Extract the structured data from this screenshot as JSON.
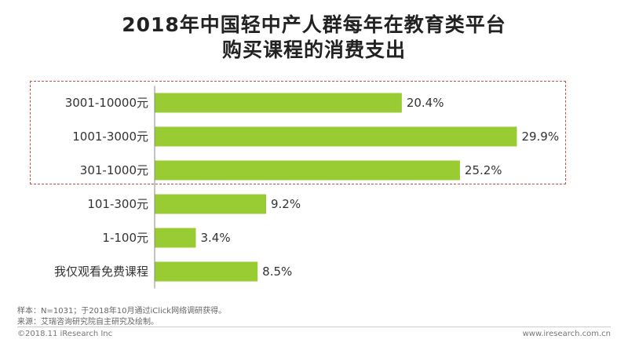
{
  "header": {
    "title_line1": "2018年中国轻中产人群每年在教育类平台",
    "title_line2": "购买课程的消费支出"
  },
  "chart_data": {
    "type": "bar",
    "orientation": "horizontal",
    "categories": [
      "3001-10000元",
      "1001-3000元",
      "301-1000元",
      "101-300元",
      "1-100元",
      "我仅观看免费课程"
    ],
    "values": [
      20.4,
      29.9,
      25.2,
      9.2,
      3.4,
      8.5
    ],
    "value_labels": [
      "20.4%",
      "29.9%",
      "25.2%",
      "9.2%",
      "3.4%",
      "8.5%"
    ],
    "unit": "%",
    "bar_color": "#99cc33",
    "highlight_color": "#c05555",
    "highlighted_categories": [
      "3001-10000元",
      "1001-3000元",
      "301-1000元"
    ],
    "xlim": [
      0,
      30
    ],
    "grid": false,
    "legend": "none"
  },
  "footer": {
    "note_sample": "样本：N=1031；于2018年10月通过iClick网络调研获得。",
    "note_source": "来源：艾瑞咨询研究院自主研究及绘制。",
    "copyright": "©2018.11 iResearch Inc",
    "website": "www.iresearch.com.cn"
  }
}
